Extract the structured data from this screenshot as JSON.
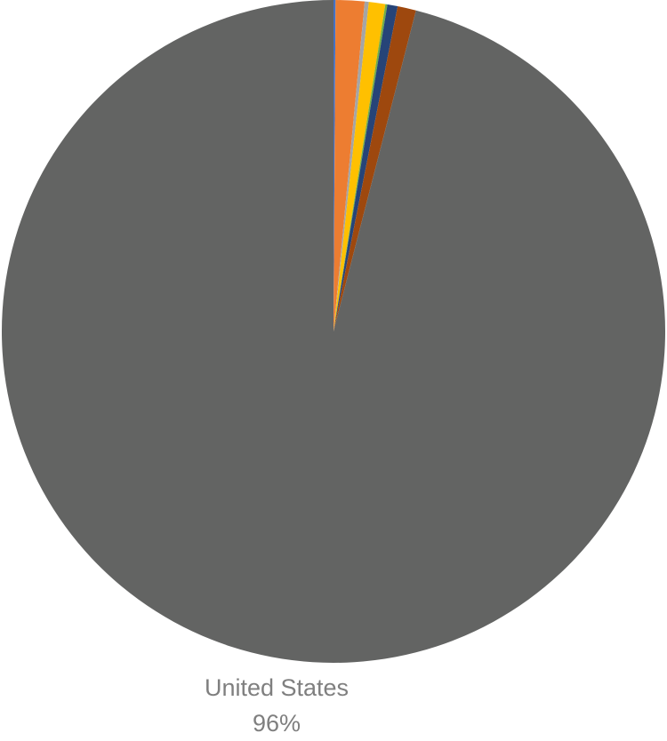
{
  "chart_data": {
    "type": "pie",
    "categories": [
      null,
      null,
      null,
      null,
      null,
      null,
      null,
      "United States"
    ],
    "values": [
      0.1,
      1.4,
      0.2,
      0.8,
      0.1,
      0.5,
      0.9,
      96
    ],
    "value_labels": [
      null,
      null,
      null,
      null,
      null,
      null,
      null,
      "96%"
    ],
    "colors": [
      "#4472c4",
      "#ed7d31",
      "#a5a5a5",
      "#ffc000",
      "#70ad47",
      "#264478",
      "#9e480e",
      "#636463"
    ]
  }
}
